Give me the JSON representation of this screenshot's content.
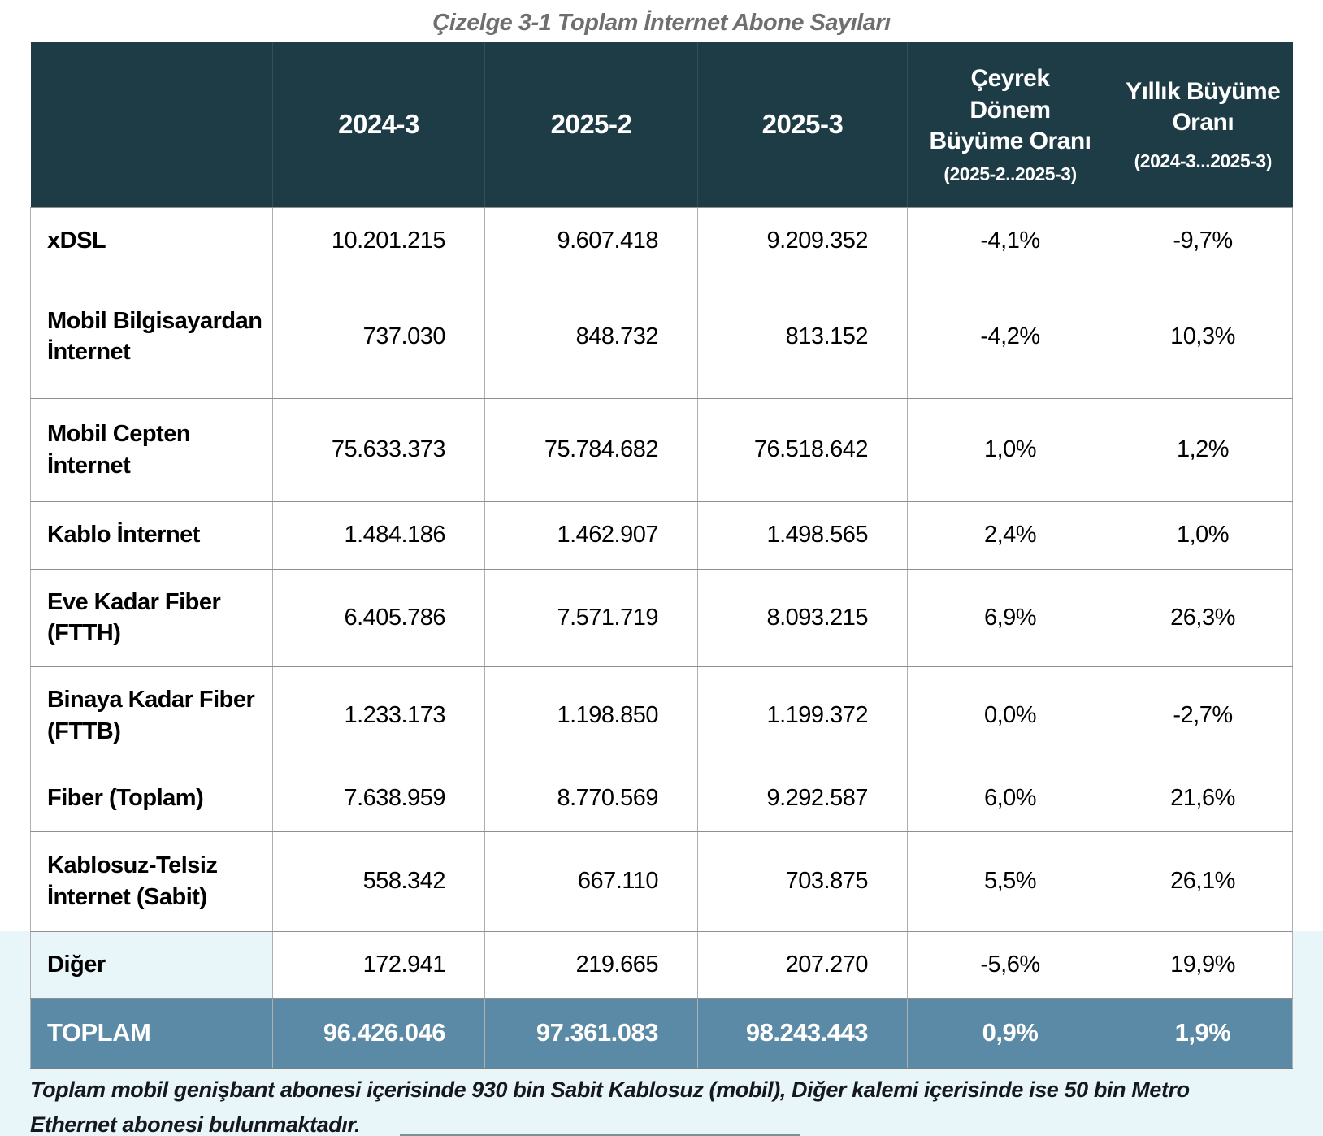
{
  "title": "Çizelge 3-1 Toplam İnternet Abone Sayıları",
  "colors": {
    "header_bg": "#1e3c45",
    "total_row_bg": "#5a8aa5",
    "bottom_band_bg": "#e8f6fa"
  },
  "table": {
    "header": {
      "period1": "2024-3",
      "period2": "2025-2",
      "period3": "2025-3",
      "quarterly_label_lines": [
        "Çeyrek",
        "Dönem",
        "Büyüme Oranı"
      ],
      "quarterly_sublabel": "(2025-2..2025-3)",
      "annual_label_lines": [
        "Yıllık Büyüme",
        "Oranı"
      ],
      "annual_sublabel": "(2024-3...2025-3)"
    },
    "rows": [
      {
        "label": "xDSL",
        "values": [
          "10.201.215",
          "9.607.418",
          "9.209.352"
        ],
        "qoq": "-4,1%",
        "yoy": "-9,7%"
      },
      {
        "label": "Mobil Bilgisayardan İnternet",
        "values": [
          "737.030",
          "848.732",
          "813.152"
        ],
        "qoq": "-4,2%",
        "yoy": "10,3%"
      },
      {
        "label": "Mobil Cepten İnternet",
        "values": [
          "75.633.373",
          "75.784.682",
          "76.518.642"
        ],
        "qoq": "1,0%",
        "yoy": "1,2%"
      },
      {
        "label": "Kablo İnternet",
        "values": [
          "1.484.186",
          "1.462.907",
          "1.498.565"
        ],
        "qoq": "2,4%",
        "yoy": "1,0%"
      },
      {
        "label": "Eve Kadar Fiber (FTTH)",
        "values": [
          "6.405.786",
          "7.571.719",
          "8.093.215"
        ],
        "qoq": "6,9%",
        "yoy": "26,3%"
      },
      {
        "label": "Binaya Kadar Fiber (FTTB)",
        "values": [
          "1.233.173",
          "1.198.850",
          "1.199.372"
        ],
        "qoq": "0,0%",
        "yoy": "-2,7%"
      },
      {
        "label": "Fiber (Toplam)",
        "values": [
          "7.638.959",
          "8.770.569",
          "9.292.587"
        ],
        "qoq": "6,0%",
        "yoy": "21,6%"
      },
      {
        "label": "Kablosuz-Telsiz İnternet (Sabit)",
        "values": [
          "558.342",
          "667.110",
          "703.875"
        ],
        "qoq": "5,5%",
        "yoy": "26,1%"
      },
      {
        "label": "Diğer",
        "values": [
          "172.941",
          "219.665",
          "207.270"
        ],
        "qoq": "-5,6%",
        "yoy": "19,9%"
      }
    ],
    "total": {
      "label": "TOPLAM",
      "values": [
        "96.426.046",
        "97.361.083",
        "98.243.443"
      ],
      "qoq": "0,9%",
      "yoy": "1,9%"
    }
  },
  "footnote": "Toplam mobil genişbant abonesi içerisinde 930 bin Sabit Kablosuz (mobil), Diğer kalemi içerisinde ise 50 bin Metro Ethernet abonesi bulunmaktadır."
}
